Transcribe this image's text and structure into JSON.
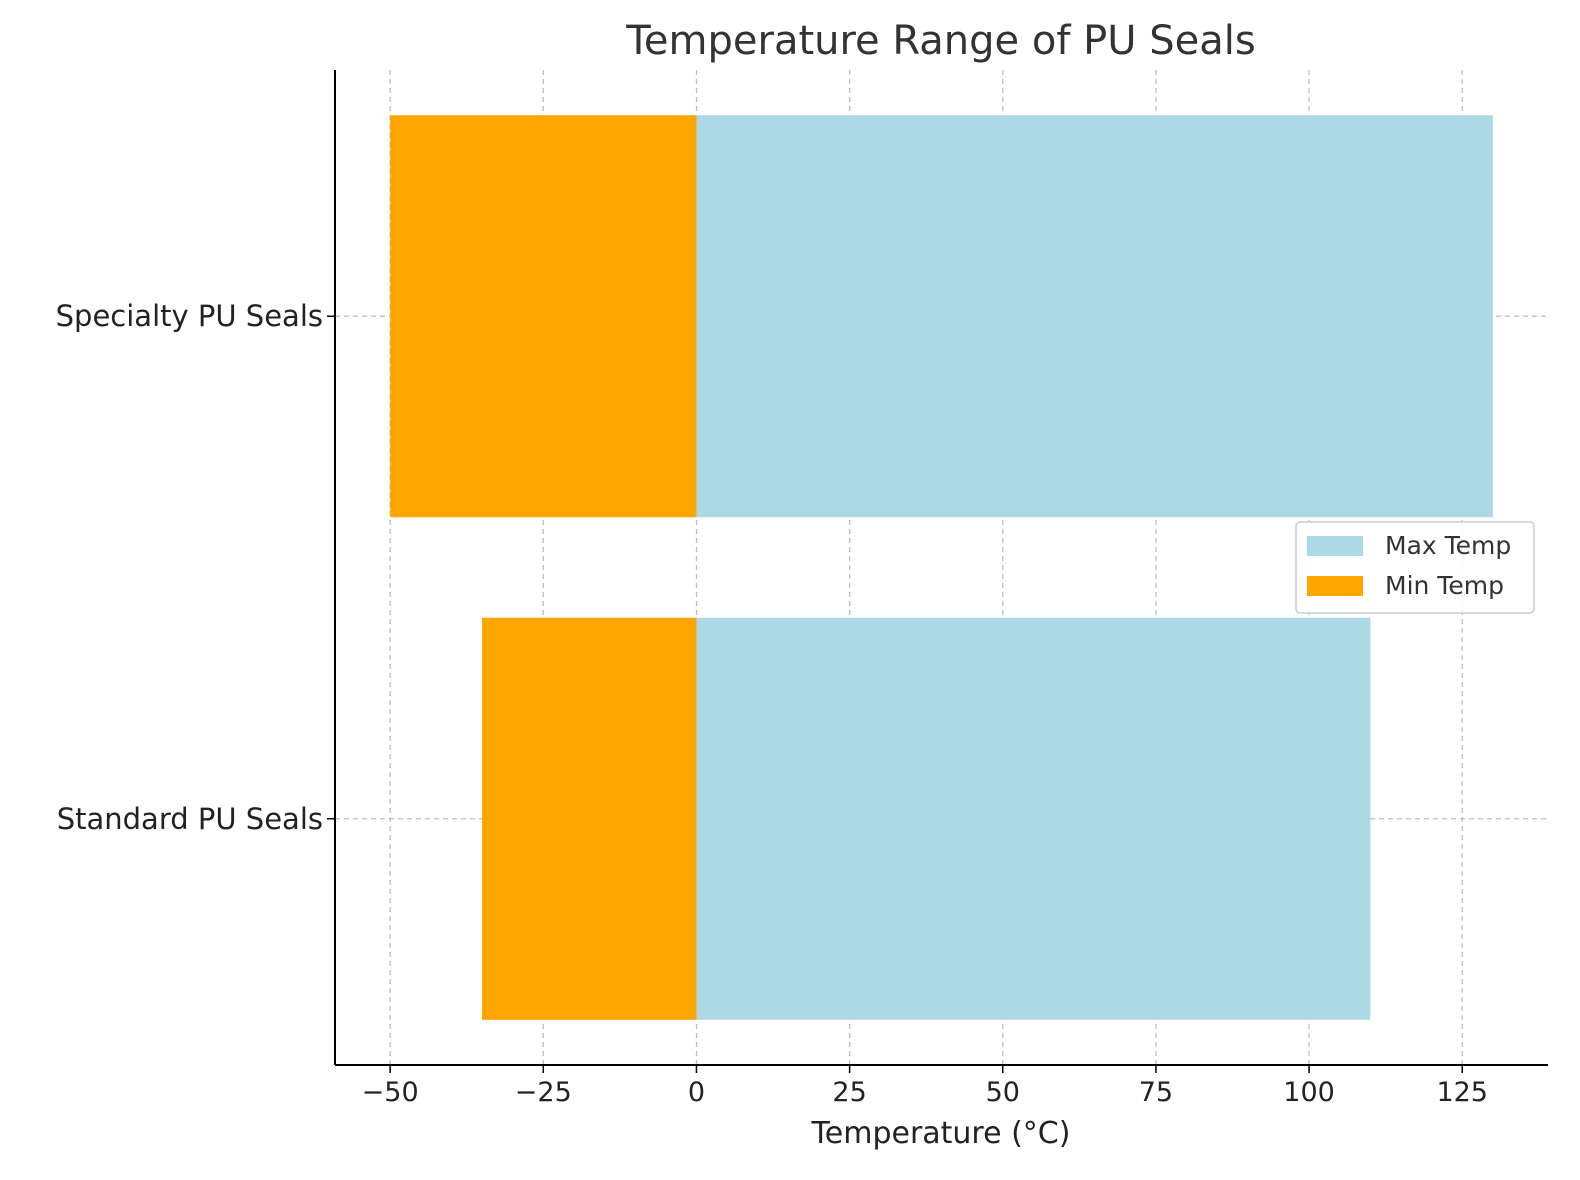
{
  "chart_data": {
    "type": "bar",
    "orientation": "horizontal",
    "title": "Temperature Range of PU Seals",
    "xlabel": "Temperature (°C)",
    "ylabel": "",
    "categories": [
      "Standard PU Seals",
      "Specialty PU Seals"
    ],
    "series": [
      {
        "name": "Max Temp",
        "values": [
          110,
          130
        ],
        "color": "#add8e6"
      },
      {
        "name": "Min Temp",
        "values": [
          -35,
          -50
        ],
        "color": "#ffa500"
      }
    ],
    "xlim": [
      -59,
      139
    ],
    "xticks": [
      -50,
      -25,
      0,
      25,
      50,
      75,
      100,
      125
    ],
    "xtick_labels": [
      "−50",
      "−25",
      "0",
      "25",
      "50",
      "75",
      "100",
      "125"
    ],
    "grid": true,
    "grid_style": "dashed",
    "legend_position": "center-right"
  }
}
